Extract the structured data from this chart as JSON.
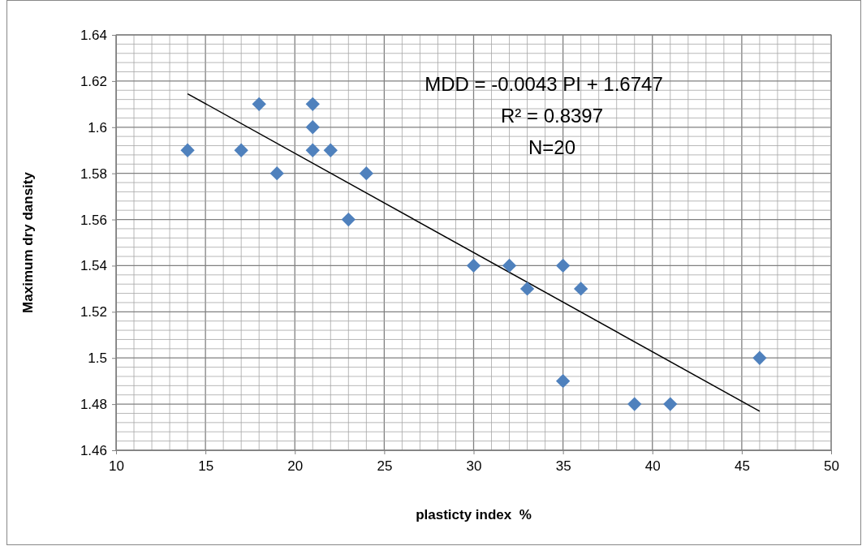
{
  "chart_data": {
    "type": "scatter",
    "xlabel": "plasticty index  %",
    "ylabel": "Maximum dry dansity",
    "xlim": [
      10,
      50
    ],
    "xticks": [
      10,
      15,
      20,
      25,
      30,
      35,
      40,
      45,
      50
    ],
    "ylim": [
      1.46,
      1.64
    ],
    "yticks": [
      1.46,
      1.48,
      1.5,
      1.52,
      1.54,
      1.56,
      1.58,
      1.6,
      1.62,
      1.64
    ],
    "grid": true,
    "annotations": [
      "MDD = -0.0043 PI + 1.6747",
      "R² = 0.8397",
      "N=20"
    ],
    "series": [
      {
        "marker": "diamond",
        "color": "#4f81bd",
        "x": [
          14,
          17,
          18,
          19,
          21,
          21,
          21,
          22,
          23,
          24,
          30,
          32,
          33,
          35,
          36,
          35,
          39,
          41,
          46
        ],
        "values": [
          1.59,
          1.59,
          1.61,
          1.58,
          1.61,
          1.6,
          1.59,
          1.59,
          1.56,
          1.58,
          1.54,
          1.54,
          1.53,
          1.54,
          1.53,
          1.49,
          1.48,
          1.48,
          1.5
        ]
      },
      {
        "type": "line",
        "marker": "none",
        "color": "#000000",
        "x": [
          14,
          46
        ],
        "values": [
          1.6145,
          1.4769
        ]
      }
    ]
  }
}
